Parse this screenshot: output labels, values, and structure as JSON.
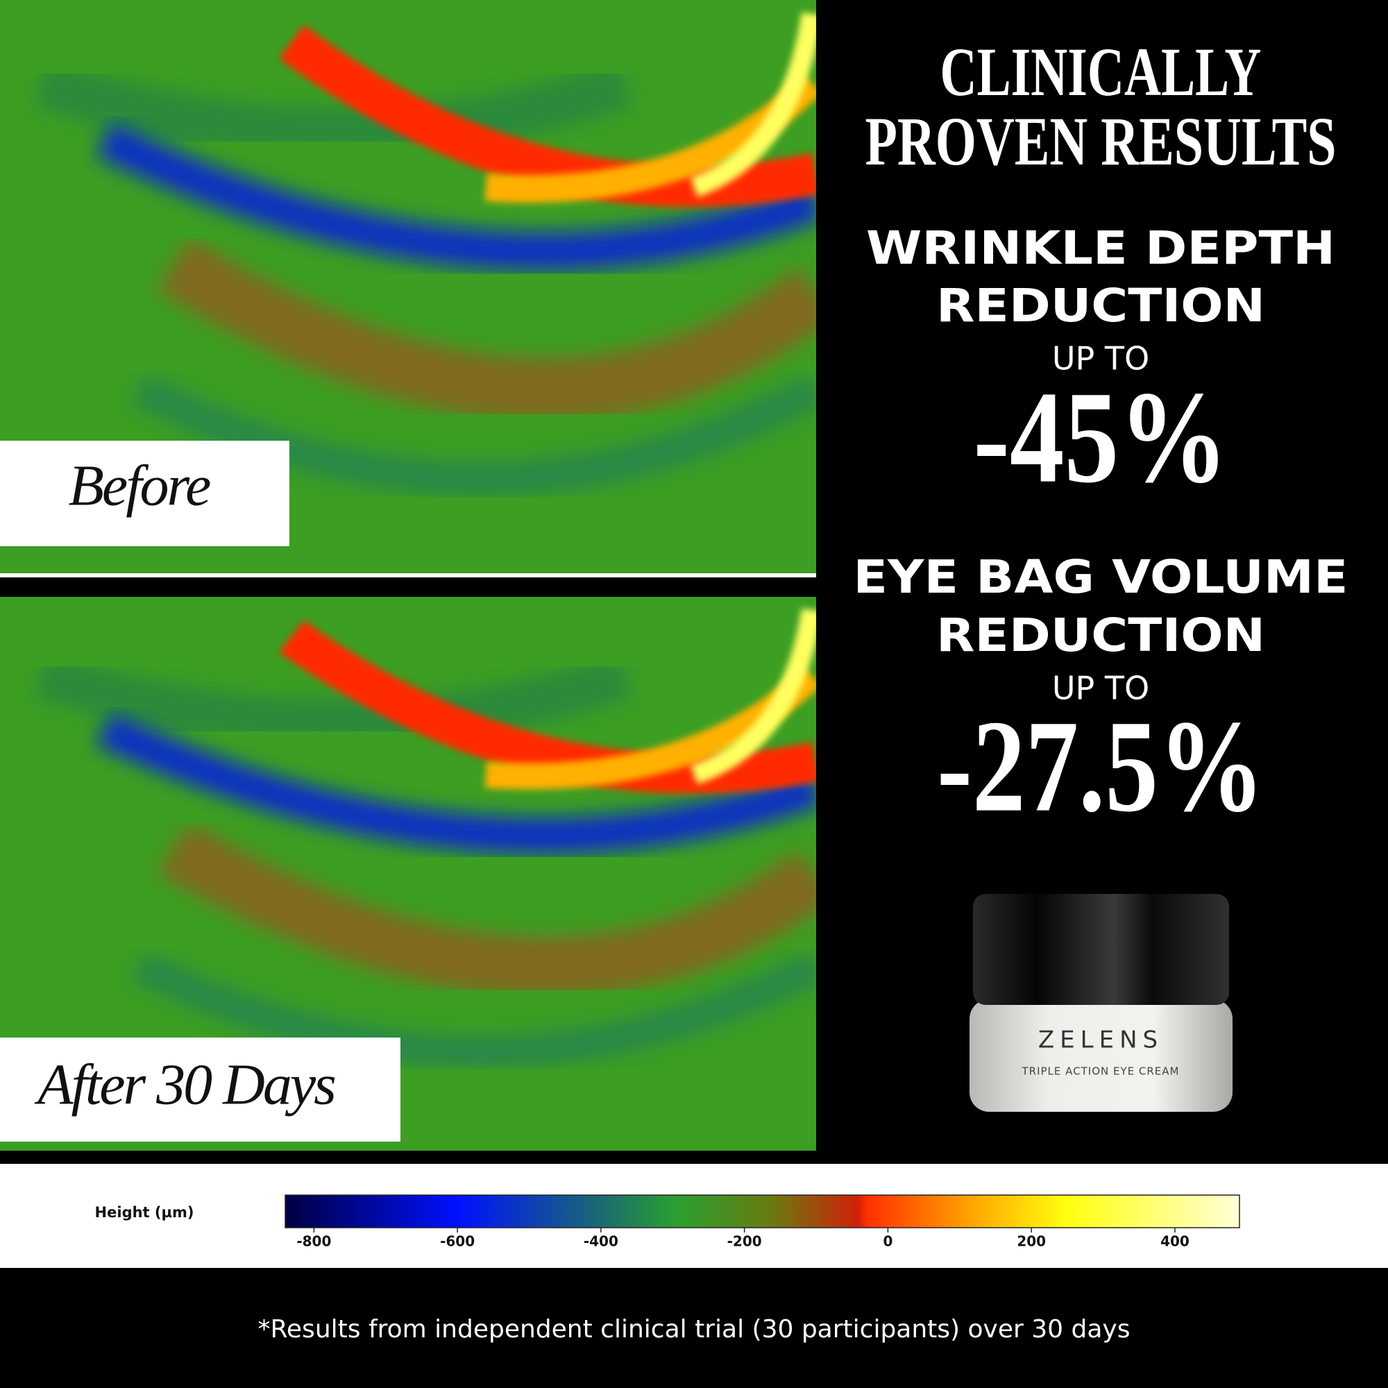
{
  "headline": {
    "title_lines": [
      "CLINICALLY",
      "PROVEN RESULTS"
    ]
  },
  "stats": [
    {
      "lines": [
        "WRINKLE DEPTH",
        "REDUCTION"
      ],
      "prefix": "UP TO",
      "value": "-45%"
    },
    {
      "lines": [
        "EYE BAG VOLUME",
        "REDUCTION"
      ],
      "prefix": "UP TO",
      "value": "-27.5%"
    }
  ],
  "images": {
    "before_label": "Before",
    "after_label": "After 30 Days"
  },
  "product": {
    "brand": "ZELENS",
    "name": "TRIPLE ACTION EYE CREAM"
  },
  "colorbar": {
    "label": "Height (µm)",
    "range": [
      -840,
      490
    ],
    "ticks": [
      -800,
      -600,
      -400,
      -200,
      0,
      200,
      400
    ]
  },
  "footnote": "*Results from independent clinical trial (30 participants) over 30 days"
}
